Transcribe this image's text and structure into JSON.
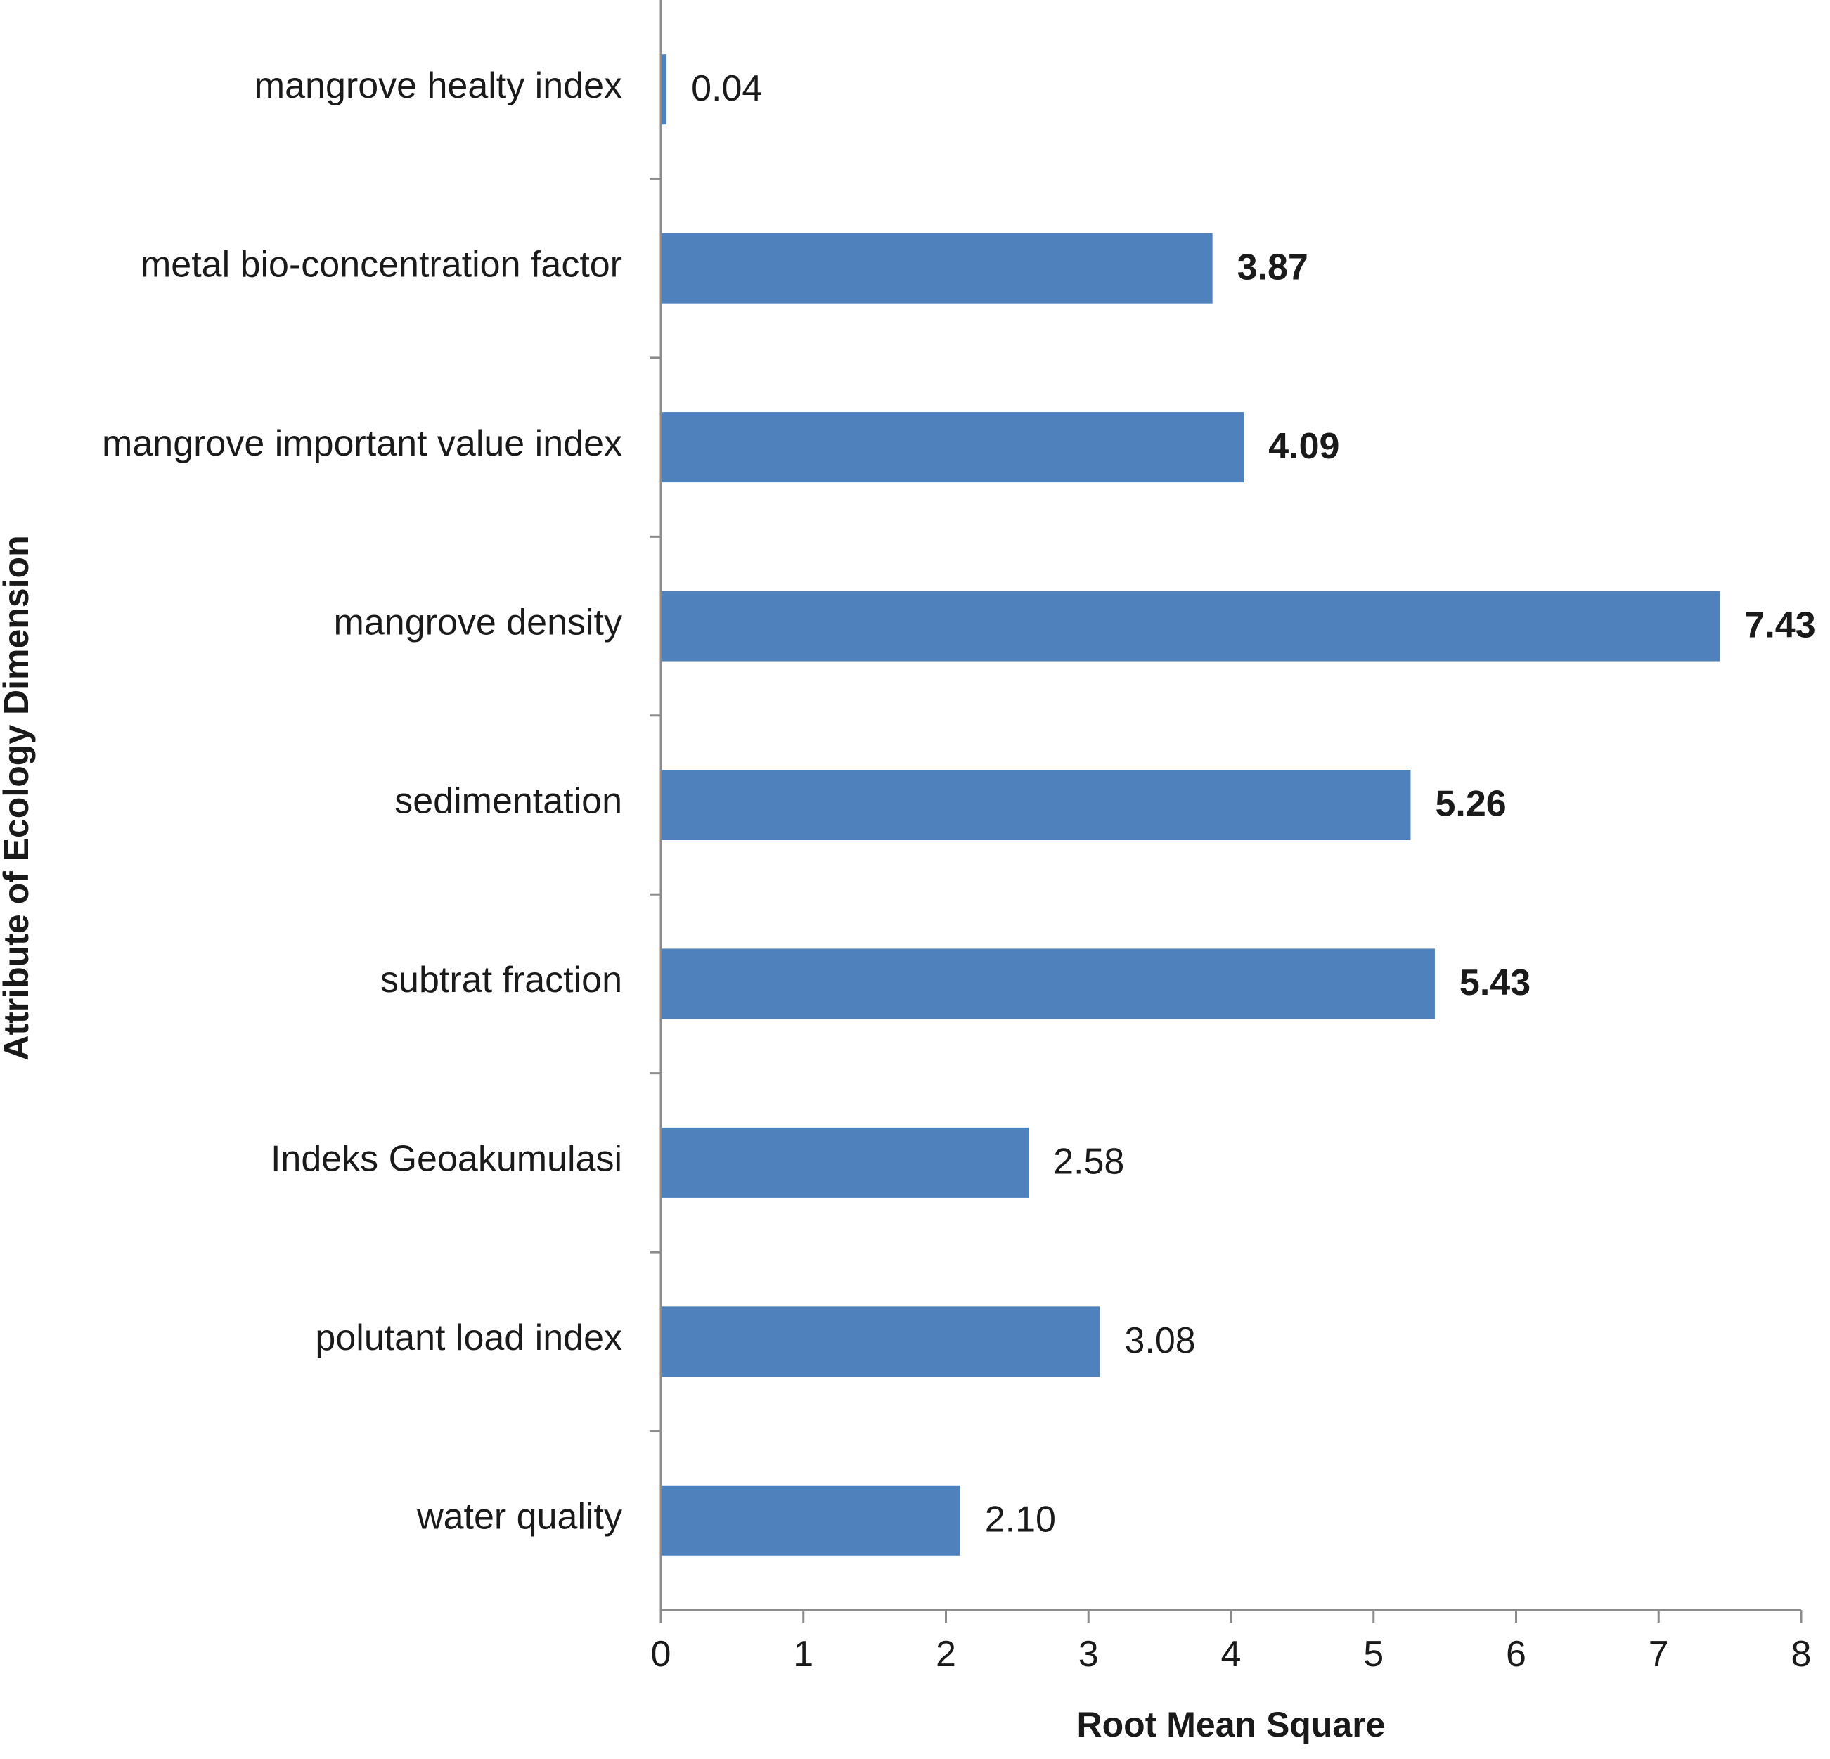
{
  "chart_data": {
    "type": "bar",
    "orientation": "horizontal",
    "xlabel": "Root Mean Square",
    "ylabel": "Attribute of Ecology Dimension",
    "xlim": [
      0,
      8
    ],
    "xticks": [
      "0",
      "1",
      "2",
      "3",
      "4",
      "5",
      "6",
      "7",
      "8"
    ],
    "grid": false,
    "legend": "none",
    "bar_color": "#4F81BD",
    "categories": [
      "mangrove healty index",
      "metal bio-concentration factor",
      "mangrove important value index",
      "mangrove density",
      "sedimentation",
      "subtrat fraction",
      "Indeks Geoakumulasi",
      "polutant load index",
      "water quality"
    ],
    "values": [
      0.04,
      3.87,
      4.09,
      7.43,
      5.26,
      5.43,
      2.58,
      3.08,
      2.1
    ],
    "data_labels": [
      "0.04",
      "3.87",
      "4.09",
      "7.43",
      "5.26",
      "5.43",
      "2.58",
      "3.08",
      "2.10"
    ],
    "label_bold": [
      false,
      true,
      true,
      true,
      true,
      true,
      false,
      false,
      false
    ]
  }
}
